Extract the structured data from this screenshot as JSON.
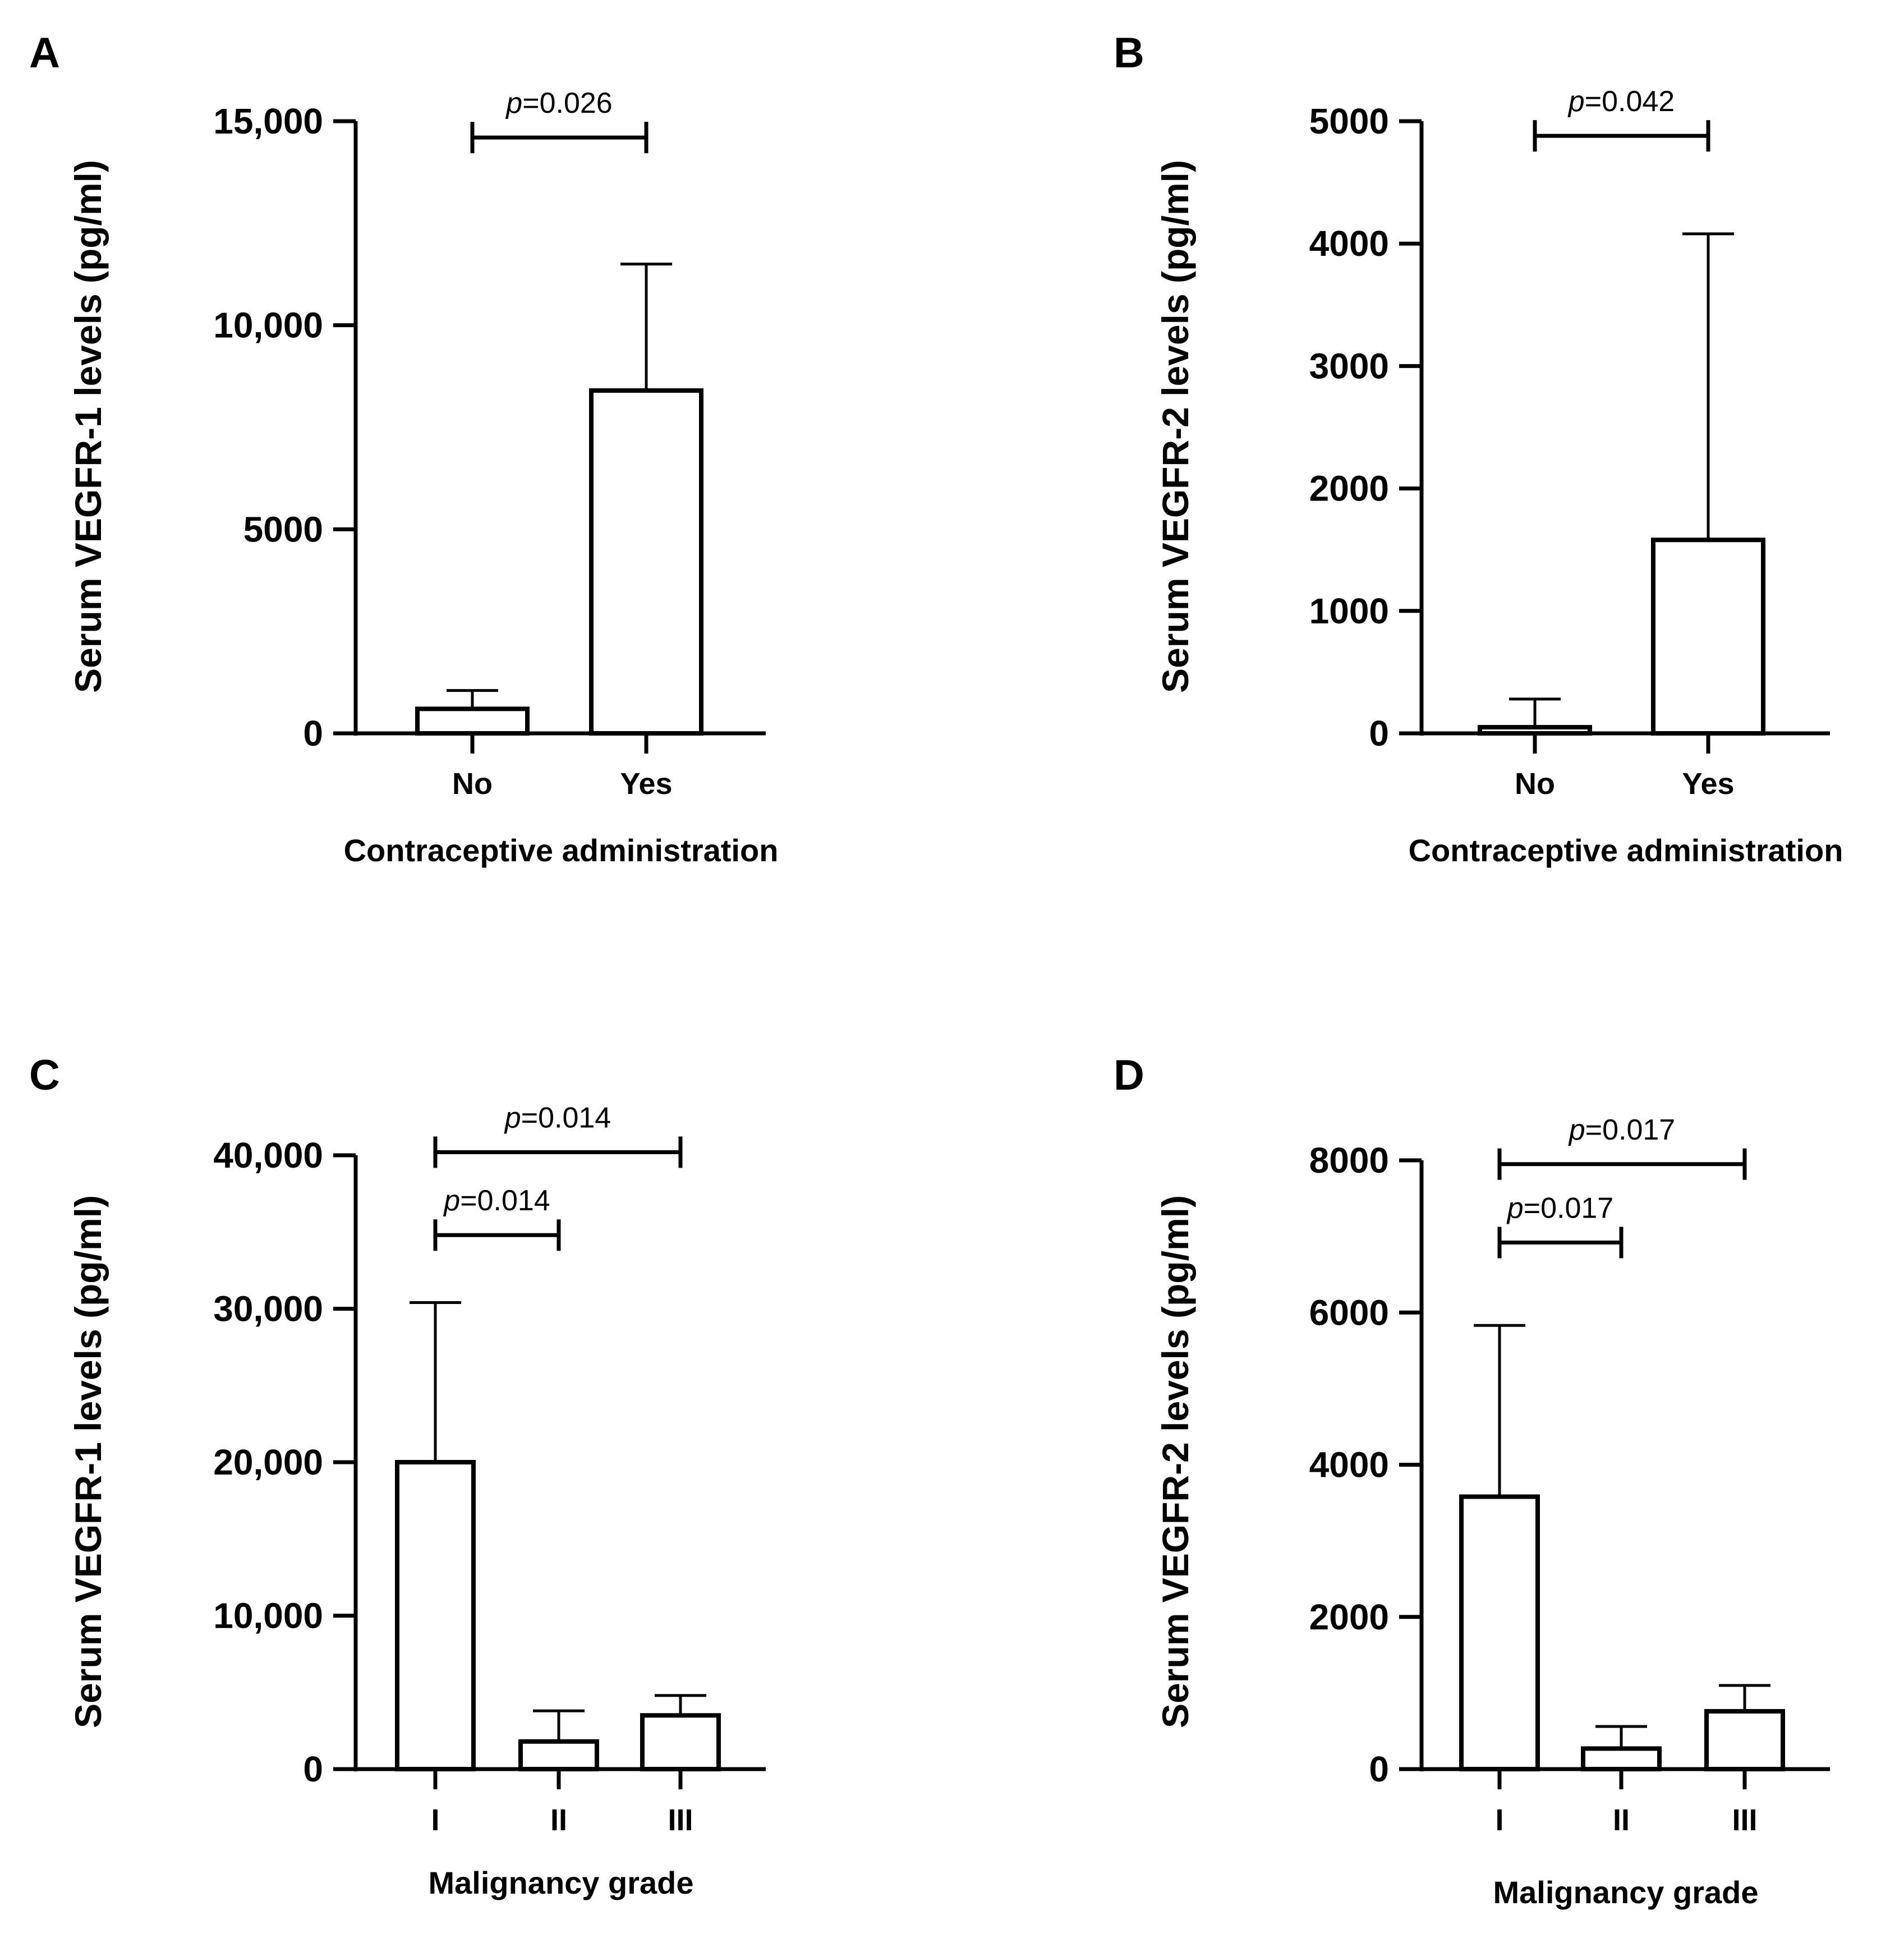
{
  "chart_data": [
    {
      "panel": "A",
      "type": "bar",
      "categories": [
        "No",
        "Yes"
      ],
      "values": [
        600,
        8400
      ],
      "error_upper": [
        1050,
        11500
      ],
      "xlabel": "Contraceptive administration",
      "ylabel": "Serum VEGFR-1 levels (pg/ml)",
      "ylim": [
        0,
        15000
      ],
      "yticks": [
        0,
        5000,
        10000,
        15000
      ],
      "ytick_labels": [
        "0",
        "5000",
        "10,000",
        "15,000"
      ],
      "comparisons": [
        {
          "from": 0,
          "to": 1,
          "p_symbol": "p",
          "p_text": "=0.026",
          "level": 14600
        }
      ]
    },
    {
      "panel": "B",
      "type": "bar",
      "categories": [
        "No",
        "Yes"
      ],
      "values": [
        50,
        1580
      ],
      "error_upper": [
        280,
        4080
      ],
      "xlabel": "Contraceptive administration",
      "ylabel": "Serum VEGFR-2 levels (pg/ml)",
      "ylim": [
        0,
        5000
      ],
      "yticks": [
        0,
        1000,
        2000,
        3000,
        4000,
        5000
      ],
      "ytick_labels": [
        "0",
        "1000",
        "2000",
        "3000",
        "4000",
        "5000"
      ],
      "comparisons": [
        {
          "from": 0,
          "to": 1,
          "p_symbol": "p",
          "p_text": "=0.042",
          "level": 4880
        }
      ]
    },
    {
      "panel": "C",
      "type": "bar",
      "categories": [
        "I",
        "II",
        "III"
      ],
      "values": [
        20000,
        1800,
        3500
      ],
      "error_upper": [
        30400,
        3800,
        4800
      ],
      "xlabel": "Malignancy grade",
      "ylabel": "Serum VEGFR-1 levels (pg/ml)",
      "ylim": [
        0,
        40000
      ],
      "yticks": [
        0,
        10000,
        20000,
        30000,
        40000
      ],
      "ytick_labels": [
        "0",
        "10,000",
        "20,000",
        "30,000",
        "40,000"
      ],
      "comparisons": [
        {
          "from": 0,
          "to": 2,
          "p_symbol": "p",
          "p_text": "=0.014",
          "level": 40200
        },
        {
          "from": 0,
          "to": 1,
          "p_symbol": "p",
          "p_text": "=0.014",
          "level": 34800
        }
      ]
    },
    {
      "panel": "D",
      "type": "bar",
      "categories": [
        "I",
        "II",
        "III"
      ],
      "values": [
        3580,
        270,
        760
      ],
      "error_upper": [
        5830,
        560,
        1100
      ],
      "xlabel": "Malignancy grade",
      "ylabel": "Serum VEGFR-2 levels (pg/ml)",
      "ylim": [
        0,
        8000
      ],
      "yticks": [
        0,
        2000,
        4000,
        6000,
        8000
      ],
      "ytick_labels": [
        "0",
        "2000",
        "4000",
        "6000",
        "8000"
      ],
      "comparisons": [
        {
          "from": 0,
          "to": 2,
          "p_symbol": "p",
          "p_text": "=0.017",
          "level": 7950
        },
        {
          "from": 0,
          "to": 1,
          "p_symbol": "p",
          "p_text": "=0.017",
          "level": 6920
        }
      ]
    }
  ]
}
